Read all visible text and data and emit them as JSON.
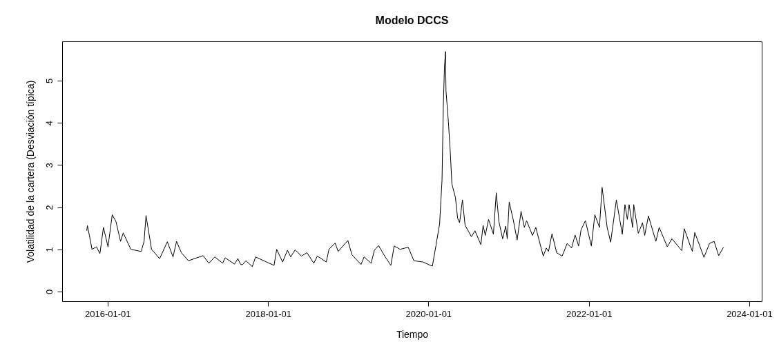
{
  "chart_data": {
    "type": "line",
    "title": "Modelo DCCS",
    "xlabel": "Tiempo",
    "ylabel": "Volatilidad de la cartera (Desviación típica)",
    "xlim": [
      "2015-06-08",
      "2024-02-27"
    ],
    "xticks": [
      "2016-01-01",
      "2018-01-01",
      "2020-01-01",
      "2022-01-01",
      "2024-01-01"
    ],
    "ylim": [
      -0.23,
      5.93
    ],
    "yticks": [
      0,
      1,
      2,
      3,
      4,
      5
    ],
    "grid": false,
    "line_style": "solid",
    "marker": "none",
    "series": [
      {
        "color": "#000000",
        "x": [
          "2015-09-28",
          "2015-10-01",
          "2015-10-10",
          "2015-10-22",
          "2015-11-11",
          "2015-11-27",
          "2015-12-13",
          "2016-01-03",
          "2016-01-22",
          "2016-02-08",
          "2016-02-29",
          "2016-03-12",
          "2016-04-16",
          "2016-06-02",
          "2016-06-15",
          "2016-06-24",
          "2016-07-19",
          "2016-08-25",
          "2016-09-29",
          "2016-10-25",
          "2016-11-10",
          "2016-12-02",
          "2017-01-03",
          "2017-03-11",
          "2017-04-06",
          "2017-05-03",
          "2017-06-08",
          "2017-06-19",
          "2017-08-01",
          "2017-08-16",
          "2017-08-29",
          "2017-09-07",
          "2017-09-22",
          "2017-10-21",
          "2017-11-05",
          "2018-01-06",
          "2018-01-28",
          "2018-02-09",
          "2018-03-08",
          "2018-03-30",
          "2018-04-14",
          "2018-05-04",
          "2018-06-01",
          "2018-06-27",
          "2018-07-28",
          "2018-08-13",
          "2018-09-23",
          "2018-10-05",
          "2018-11-02",
          "2018-11-16",
          "2018-12-30",
          "2019-01-18",
          "2019-02-28",
          "2019-03-14",
          "2019-04-15",
          "2019-04-30",
          "2019-05-19",
          "2019-06-16",
          "2019-07-14",
          "2019-07-29",
          "2019-08-25",
          "2019-10-01",
          "2019-10-27",
          "2019-12-07",
          "2020-01-19",
          "2020-02-04",
          "2020-02-21",
          "2020-03-03",
          "2020-03-09",
          "2020-03-14",
          "2020-03-19",
          "2020-03-21",
          "2020-04-01",
          "2020-04-10",
          "2020-04-17",
          "2020-05-03",
          "2020-05-13",
          "2020-05-22",
          "2020-06-04",
          "2020-06-16",
          "2020-07-15",
          "2020-07-31",
          "2020-08-27",
          "2020-09-06",
          "2020-09-16",
          "2020-10-01",
          "2020-10-23",
          "2020-11-05",
          "2020-11-17",
          "2020-12-04",
          "2020-12-18",
          "2020-12-25",
          "2021-01-03",
          "2021-01-21",
          "2021-02-08",
          "2021-02-26",
          "2021-03-13",
          "2021-03-23",
          "2021-04-19",
          "2021-05-04",
          "2021-06-07",
          "2021-06-21",
          "2021-07-01",
          "2021-07-17",
          "2021-08-07",
          "2021-09-01",
          "2021-09-24",
          "2021-10-14",
          "2021-10-30",
          "2021-11-15",
          "2021-11-26",
          "2021-12-16",
          "2022-01-12",
          "2022-01-28",
          "2022-02-18",
          "2022-03-02",
          "2022-03-25",
          "2022-04-10",
          "2022-05-06",
          "2022-06-02",
          "2022-06-14",
          "2022-06-25",
          "2022-07-03",
          "2022-07-19",
          "2022-07-24",
          "2022-08-14",
          "2022-09-02",
          "2022-09-12",
          "2022-09-29",
          "2022-11-02",
          "2022-11-17",
          "2022-12-24",
          "2023-01-14",
          "2023-02-28",
          "2023-03-11",
          "2023-04-17",
          "2023-04-28",
          "2023-06-09",
          "2023-07-04",
          "2023-07-25",
          "2023-08-15",
          "2023-09-06"
        ],
        "values": [
          1.44,
          1.56,
          1.33,
          1.0,
          1.06,
          0.9,
          1.52,
          1.06,
          1.82,
          1.66,
          1.19,
          1.39,
          1.0,
          0.95,
          1.19,
          1.8,
          1.0,
          0.78,
          1.18,
          0.82,
          1.19,
          0.92,
          0.73,
          0.85,
          0.67,
          0.82,
          0.67,
          0.8,
          0.65,
          0.78,
          0.64,
          0.64,
          0.73,
          0.59,
          0.82,
          0.67,
          0.62,
          1.0,
          0.7,
          0.98,
          0.82,
          0.99,
          0.84,
          0.92,
          0.67,
          0.84,
          0.7,
          1.0,
          1.15,
          0.95,
          1.21,
          0.87,
          0.64,
          0.82,
          0.67,
          0.98,
          1.09,
          0.84,
          0.62,
          1.08,
          1.0,
          1.05,
          0.73,
          0.7,
          0.6,
          1.08,
          1.6,
          2.64,
          4.41,
          5.31,
          5.69,
          4.76,
          4.02,
          3.27,
          2.55,
          2.23,
          1.74,
          1.63,
          2.17,
          1.57,
          1.3,
          1.44,
          1.11,
          1.57,
          1.33,
          1.71,
          1.36,
          2.34,
          1.66,
          1.25,
          1.55,
          1.25,
          2.12,
          1.71,
          1.22,
          1.9,
          1.52,
          1.68,
          1.33,
          1.52,
          0.84,
          1.03,
          0.95,
          1.37,
          0.92,
          0.84,
          1.14,
          1.03,
          1.34,
          1.08,
          1.46,
          1.68,
          1.08,
          1.82,
          1.52,
          2.47,
          1.52,
          1.17,
          2.17,
          1.36,
          2.06,
          1.71,
          2.06,
          1.52,
          2.06,
          1.38,
          1.63,
          1.33,
          1.79,
          1.19,
          1.52,
          1.06,
          1.25,
          0.97,
          1.49,
          0.95,
          1.4,
          0.81,
          1.14,
          1.19,
          0.85,
          1.05
        ]
      }
    ]
  }
}
